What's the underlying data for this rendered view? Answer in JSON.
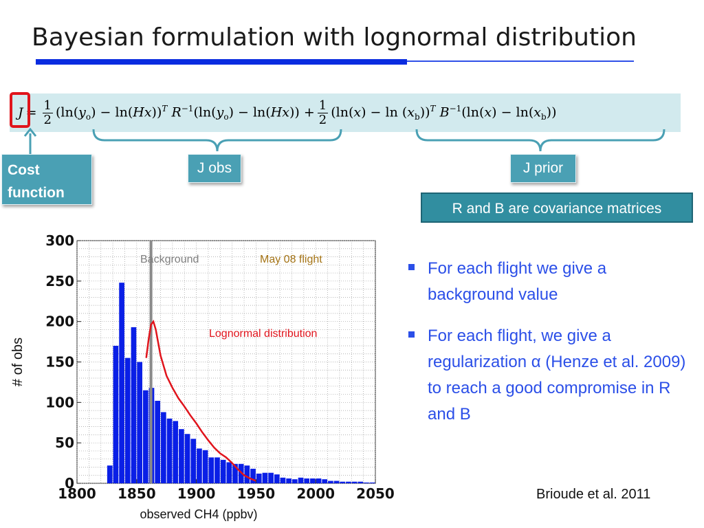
{
  "slide": {
    "title": "Bayesian formulation with lognormal distribution",
    "labels": {
      "cost_function": "Cost function",
      "j_obs": "J obs",
      "j_prior": "J prior",
      "covariance_note": "R and B are covariance matrices"
    },
    "bullets": [
      "For each flight we give a background value",
      "For each flight, we give a regularization α  (Henze et al. 2009) to reach a good compromise in R and B"
    ],
    "citation": "Brioude et al. 2011"
  },
  "chart_data": {
    "type": "bar",
    "xlabel": "observed CH4 (ppbv)",
    "ylabel": "# of obs",
    "xlim": [
      1800,
      2050
    ],
    "ylim": [
      0,
      300
    ],
    "xticks": [
      1800,
      1850,
      1900,
      1950,
      2000,
      2050
    ],
    "yticks": [
      0,
      50,
      100,
      150,
      200,
      250,
      300
    ],
    "grid": true,
    "bin_width": 5,
    "bins": [
      1825,
      1830,
      1835,
      1840,
      1845,
      1850,
      1855,
      1860,
      1865,
      1870,
      1875,
      1880,
      1885,
      1890,
      1895,
      1900,
      1905,
      1910,
      1915,
      1920,
      1925,
      1930,
      1935,
      1940,
      1945,
      1950,
      1955,
      1960,
      1965,
      1970,
      1975,
      1980,
      1985,
      1990,
      1995,
      2000,
      2005,
      2010,
      2015,
      2020,
      2025,
      2030,
      2035,
      2040,
      2045
    ],
    "values": [
      22,
      170,
      248,
      155,
      193,
      150,
      115,
      118,
      102,
      88,
      80,
      77,
      67,
      61,
      55,
      43,
      41,
      32,
      32,
      29,
      26,
      24,
      24,
      22,
      18,
      12,
      13,
      13,
      11,
      7,
      6,
      5,
      7,
      6,
      6,
      6,
      5,
      3,
      3,
      2,
      2,
      2,
      2,
      1,
      1
    ],
    "lognormal_curve": {
      "name": "Lognormal distribution",
      "x": [
        1858,
        1860,
        1862,
        1864,
        1866,
        1870,
        1875,
        1880,
        1885,
        1890,
        1895,
        1900,
        1905,
        1910,
        1915,
        1920,
        1925,
        1930,
        1935,
        1940,
        1945,
        1950
      ],
      "y": [
        155,
        178,
        196,
        200,
        190,
        158,
        133,
        118,
        105,
        95,
        84,
        74,
        63,
        53,
        44,
        37,
        32,
        25,
        17,
        10,
        6,
        3
      ]
    },
    "annotations": {
      "background": {
        "text": "Background",
        "x": 1862,
        "color": "#7f7f7f"
      },
      "flight": {
        "text": "May 08 flight",
        "color": "#a57416"
      },
      "curve": {
        "text": "Lognormal distribution",
        "color": "#e0141c"
      }
    },
    "colors": {
      "bars": "#0a1fe6",
      "curve": "#e0141c",
      "background_line": "#8a8a8a"
    }
  },
  "colors": {
    "accent_blue": "#0a2ce0",
    "teal_label": "#4aa0b4",
    "teal_dark": "#318ea0",
    "equation_bg": "#d2eaee",
    "highlight_red": "#e0141c",
    "bullet_blue": "#2b4fe8"
  }
}
